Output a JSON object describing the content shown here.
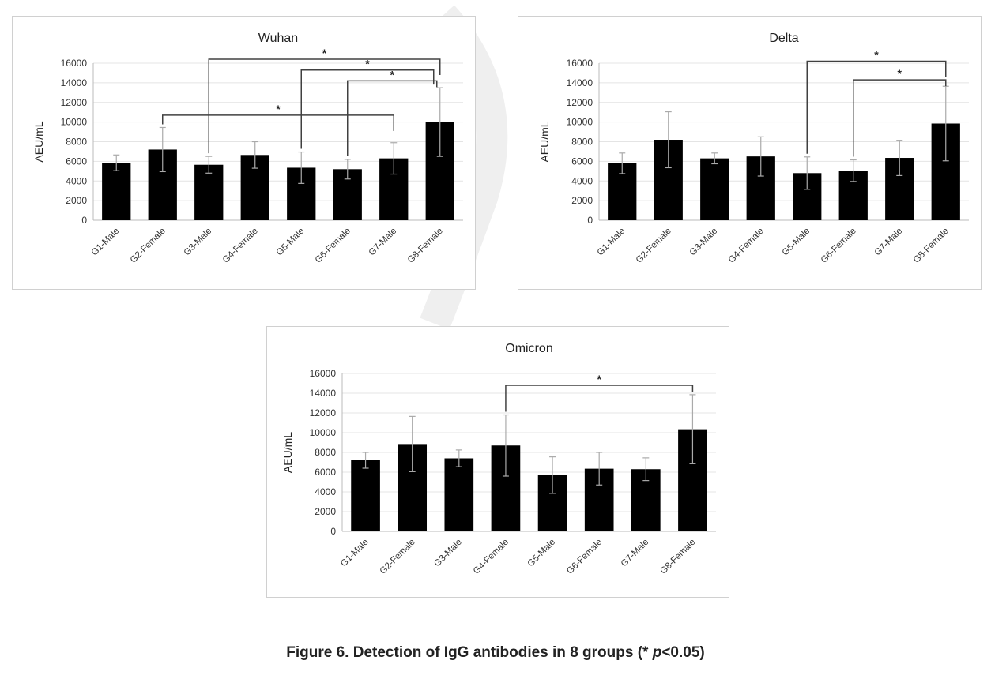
{
  "chart_data": [
    {
      "type": "bar",
      "title": "Wuhan",
      "ylabel": "AEU/mL",
      "xlabel": "",
      "ylim": [
        0,
        16000
      ],
      "yticks": [
        0,
        2000,
        4000,
        6000,
        8000,
        10000,
        12000,
        14000,
        16000
      ],
      "grid": true,
      "categories": [
        "G1-Male",
        "G2-Female",
        "G3-Male",
        "G4-Female",
        "G5-Male",
        "G6-Female",
        "G7-Male",
        "G8-Female"
      ],
      "values": [
        5850,
        7200,
        5650,
        6650,
        5350,
        5200,
        6300,
        10000
      ],
      "errors": [
        800,
        2250,
        850,
        1350,
        1600,
        1000,
        1600,
        3500
      ],
      "significance": [
        {
          "from": "G3-Male",
          "to": "G8-Female",
          "label": "*",
          "level": 16400
        },
        {
          "from": "G5-Male",
          "to": "G8-Female",
          "label": "*",
          "level": 15300
        },
        {
          "from": "G6-Female",
          "to": "G8-Female",
          "label": "*",
          "level": 14200
        },
        {
          "from": "G2-Female",
          "to": "G7-Male",
          "label": "*",
          "level": 10700
        }
      ]
    },
    {
      "type": "bar",
      "title": "Delta",
      "ylabel": "AEU/mL",
      "xlabel": "",
      "ylim": [
        0,
        16000
      ],
      "yticks": [
        0,
        2000,
        4000,
        6000,
        8000,
        10000,
        12000,
        14000,
        16000
      ],
      "grid": true,
      "categories": [
        "G1-Male",
        "G2-Female",
        "G3-Male",
        "G4-Female",
        "G5-Male",
        "G6-Female",
        "G7-Male",
        "G8-Female"
      ],
      "values": [
        5800,
        8200,
        6300,
        6500,
        4800,
        5050,
        6350,
        9850
      ],
      "errors": [
        1050,
        2850,
        550,
        2000,
        1650,
        1100,
        1800,
        3800
      ],
      "significance": [
        {
          "from": "G5-Male",
          "to": "G8-Female",
          "label": "*",
          "level": 16200
        },
        {
          "from": "G6-Female",
          "to": "G8-Female",
          "label": "*",
          "level": 14300
        }
      ]
    },
    {
      "type": "bar",
      "title": "Omicron",
      "ylabel": "AEU/mL",
      "xlabel": "",
      "ylim": [
        0,
        16000
      ],
      "yticks": [
        0,
        2000,
        4000,
        6000,
        8000,
        10000,
        12000,
        14000,
        16000
      ],
      "grid": true,
      "categories": [
        "G1-Male",
        "G2-Female",
        "G3-Male",
        "G4-Female",
        "G5-Male",
        "G6-Female",
        "G7-Male",
        "G8-Female"
      ],
      "values": [
        7200,
        8850,
        7400,
        8700,
        5700,
        6350,
        6300,
        10350
      ],
      "errors": [
        800,
        2800,
        850,
        3100,
        1850,
        1650,
        1150,
        3500
      ],
      "significance": [
        {
          "from": "G4-Female",
          "to": "G8-Female",
          "label": "*",
          "level": 14800
        }
      ]
    }
  ],
  "caption": {
    "prefix": "Figure 6. Detection of IgG antibodies in 8 groups (* ",
    "p": "p",
    "suffix": "<0.05)"
  },
  "colors": {
    "bar": "#000000",
    "error": "#aaaaaa",
    "grid": "#e4e4e4",
    "bracket": "#404040"
  }
}
